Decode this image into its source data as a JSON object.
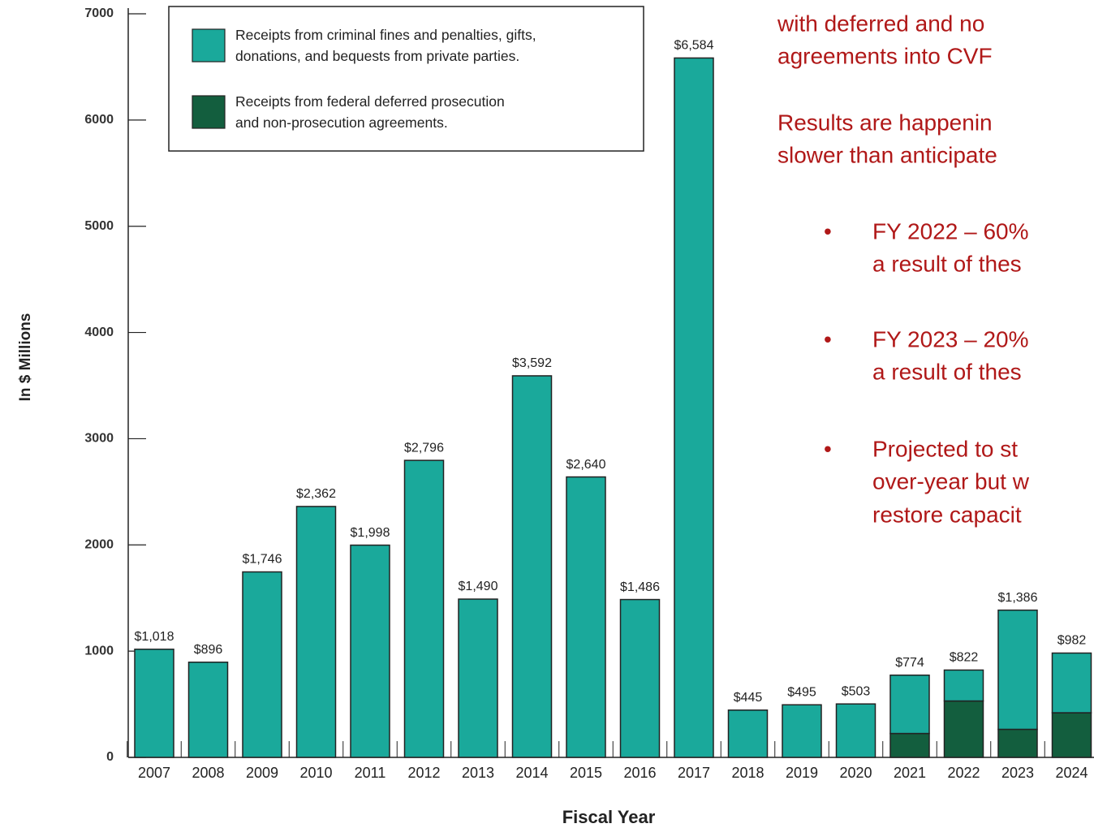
{
  "chart_data": {
    "type": "stacked_bar",
    "x_label": "Fiscal Year",
    "y_label": "In $ Millions",
    "categories": [
      "2007",
      "2008",
      "2009",
      "2010",
      "2011",
      "2012",
      "2013",
      "2014",
      "2015",
      "2016",
      "2017",
      "2018",
      "2019",
      "2020",
      "2021",
      "2022",
      "2023",
      "2024"
    ],
    "series": [
      {
        "name": "Receipts from federal deferred prosecution and non-prosecution agreements.",
        "color": "#135e3e",
        "values": [
          0,
          0,
          0,
          0,
          0,
          0,
          0,
          0,
          0,
          0,
          0,
          0,
          0,
          0,
          225,
          531,
          264,
          420
        ],
        "value_labels": [
          null,
          null,
          null,
          null,
          null,
          null,
          null,
          null,
          null,
          null,
          null,
          null,
          null,
          null,
          "$225",
          "$531",
          "$264",
          "$420"
        ]
      },
      {
        "name": "Receipts from criminal fines and penalties, gifts, donations, and bequests from private parties.",
        "color": "#1aa99b",
        "values": [
          1018,
          896,
          1746,
          2362,
          1998,
          2796,
          1490,
          3592,
          2640,
          1486,
          6584,
          445,
          495,
          503,
          549,
          291,
          1122,
          562
        ]
      }
    ],
    "legend_order": [
      1,
      0
    ],
    "totals": [
      1018,
      896,
      1746,
      2362,
      1998,
      2796,
      1490,
      3592,
      2640,
      1486,
      6584,
      445,
      495,
      503,
      774,
      822,
      1386,
      982
    ],
    "total_labels": [
      "$1,018",
      "$896",
      "$1,746",
      "$2,362",
      "$1,998",
      "$2,796",
      "$1,490",
      "$3,592",
      "$2,640",
      "$1,486",
      "$6,584",
      "$445",
      "$495",
      "$503",
      "$774",
      "$822",
      "$1,386",
      "$982"
    ],
    "ylim": [
      0,
      7000
    ],
    "yticks": [
      0,
      1000,
      2000,
      3000,
      4000,
      5000,
      6000,
      7000
    ],
    "grid": false
  },
  "text_panel": {
    "lines": [
      "with deferred and no",
      "agreements into CVF",
      "Results are happenin",
      "slower than anticipate"
    ],
    "bullets": [
      [
        "FY 2022 – 60%",
        "a result of thes"
      ],
      [
        "FY 2023 – 20%",
        "a result of thes"
      ],
      [
        "Projected to st",
        "over-year but w",
        "restore capacit"
      ]
    ]
  }
}
